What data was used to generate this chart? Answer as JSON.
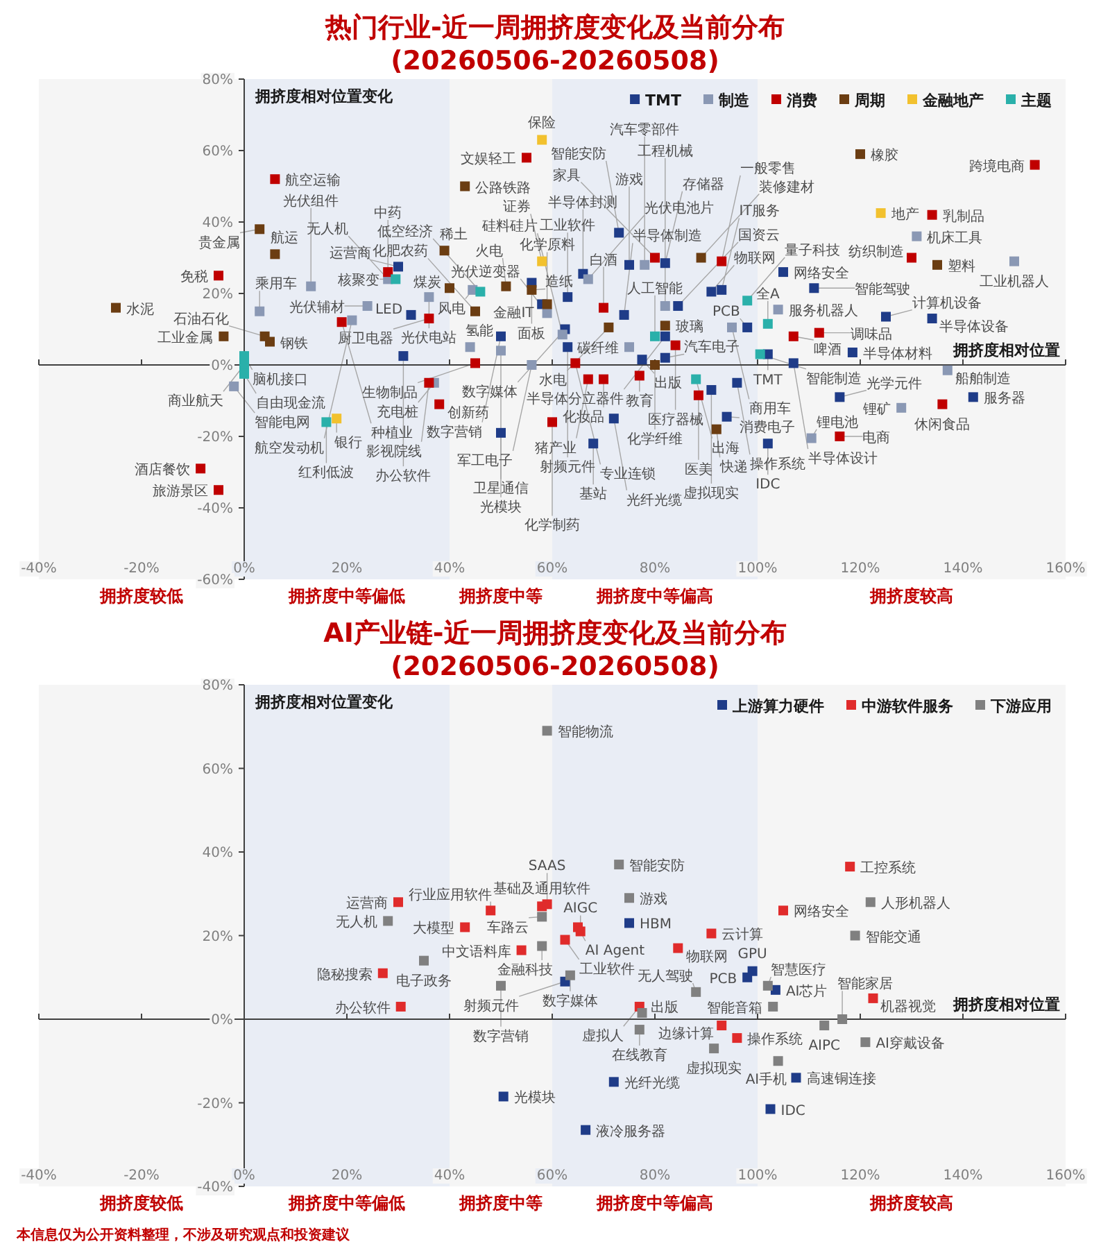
{
  "chart_data": [
    {
      "type": "scatter",
      "title": "热门行业-近一周拥挤度变化及当前分布",
      "subtitle": "(20260506-20260508)",
      "xlabel": "拥挤度相对位置",
      "ylabel": "拥挤度相对位置变化",
      "xlim": [
        -40,
        160
      ],
      "ylim": [
        -60,
        80
      ],
      "xticks": [
        {
          "value": -40,
          "label": "-40%"
        },
        {
          "value": -20,
          "label": "-20%"
        },
        {
          "value": 0,
          "label": "0%"
        },
        {
          "value": 20,
          "label": "20%"
        },
        {
          "value": 40,
          "label": "40%"
        },
        {
          "value": 60,
          "label": "60%"
        },
        {
          "value": 80,
          "label": "80%"
        },
        {
          "value": 100,
          "label": "100%"
        },
        {
          "value": 120,
          "label": "120%"
        },
        {
          "value": 140,
          "label": "140%"
        },
        {
          "value": 160,
          "label": "160%"
        }
      ],
      "yticks": [
        {
          "value": -60,
          "label": "-60%"
        },
        {
          "value": -40,
          "label": "-40%"
        },
        {
          "value": -20,
          "label": "-20%"
        },
        {
          "value": 0,
          "label": "0%"
        },
        {
          "value": 20,
          "label": "20%"
        },
        {
          "value": 40,
          "label": "40%"
        },
        {
          "value": 60,
          "label": "60%"
        },
        {
          "value": 80,
          "label": "80%"
        }
      ],
      "marker": "square",
      "legend": "top right",
      "bands": [
        {
          "axis": "x",
          "from": -40,
          "to": 0,
          "label": "拥挤度较低",
          "color": "#f5f5f5"
        },
        {
          "axis": "x",
          "from": 0,
          "to": 40,
          "label": "拥挤度中等偏低",
          "color": "#e9edf5"
        },
        {
          "axis": "x",
          "from": 40,
          "to": 60,
          "label": "拥挤度中等",
          "color": "#f5f5f5"
        },
        {
          "axis": "x",
          "from": 60,
          "to": 100,
          "label": "拥挤度中等偏高",
          "color": "#e9edf5"
        },
        {
          "axis": "x",
          "from": 100,
          "to": 160,
          "label": "拥挤度较高",
          "color": "#f5f5f5"
        }
      ],
      "series": [
        {
          "name": "TMT",
          "color": "#1f3c88",
          "x": [
            30,
            32.5,
            31,
            50,
            50,
            56,
            58,
            63,
            62.5,
            63,
            66,
            73,
            75,
            82,
            91,
            93,
            84.5,
            74,
            82,
            77.5,
            82,
            91,
            96,
            94,
            72,
            68,
            102,
            98,
            102,
            105,
            111,
            107,
            125,
            134,
            118.5,
            142,
            116
          ],
          "values": [
            27.5,
            14,
            2.5,
            8,
            -19,
            23,
            17,
            19,
            10,
            5,
            25.5,
            37,
            28,
            28.5,
            20.5,
            21,
            16.5,
            14,
            8,
            1.5,
            2,
            -7,
            -5,
            -14.5,
            -15,
            -22,
            -22,
            10.5,
            3,
            26,
            21.5,
            0.5,
            13.5,
            13,
            3.5,
            -9,
            -9
          ]
        },
        {
          "name": "制造",
          "color": "#8a98b4",
          "x": [
            3,
            13,
            -2,
            28,
            36,
            24,
            21,
            37,
            44.5,
            44,
            50,
            56,
            59,
            62,
            67,
            78,
            82,
            75,
            104,
            95,
            128,
            137,
            131,
            150,
            110.5
          ],
          "values": [
            15,
            22,
            -6,
            24,
            19,
            16.5,
            12.5,
            -5,
            21,
            5,
            4,
            0,
            14.5,
            8.5,
            24,
            28,
            16.5,
            5,
            15.5,
            10.5,
            -12,
            -1.5,
            36,
            29,
            -20.5
          ]
        },
        {
          "name": "消费",
          "color": "#c00000",
          "x": [
            6,
            -5,
            -8.5,
            -5,
            28,
            19,
            36,
            36,
            38,
            55,
            45,
            60,
            64.5,
            70,
            80,
            93,
            84,
            77,
            67,
            70,
            88.5,
            107,
            112,
            116,
            154,
            134,
            130,
            136
          ],
          "values": [
            52,
            25,
            -29,
            -35,
            26,
            12,
            13,
            -5,
            -11,
            58,
            0.5,
            -16,
            0.5,
            16,
            30,
            29,
            5.5,
            -3,
            -4,
            -4,
            -8.5,
            8,
            9,
            -20,
            56,
            42,
            30,
            -11
          ]
        },
        {
          "name": "周期",
          "color": "#6b3d12",
          "x": [
            3,
            6,
            -25,
            -4,
            4,
            5,
            43,
            39,
            40,
            45,
            51,
            56,
            59,
            71,
            82,
            80,
            89,
            92,
            120,
            135
          ],
          "values": [
            38,
            31,
            16,
            8,
            8,
            6.5,
            50,
            32,
            21.5,
            15,
            22,
            21,
            17,
            10.5,
            11,
            0,
            30,
            -18,
            59,
            28
          ]
        },
        {
          "name": "金融地产",
          "color": "#f2c12e",
          "x": [
            58,
            58,
            18,
            124
          ],
          "values": [
            63,
            29,
            -15,
            42.5
          ]
        },
        {
          "name": "主题",
          "color": "#2ab0aa",
          "x": [
            0,
            0,
            0,
            16,
            29.5,
            46,
            80,
            88,
            98,
            102,
            100.5
          ],
          "values": [
            2.5,
            0,
            -2.5,
            -16,
            24,
            20.5,
            8,
            -4,
            18,
            11.5,
            3
          ]
        }
      ],
      "annotations": [
        {
          "text": "运营商",
          "x": 30,
          "y": 27.5
        },
        {
          "text": "LED",
          "x": 32.5,
          "y": 14
        },
        {
          "text": "办公软件",
          "x": 31,
          "y": 2.5
        },
        {
          "text": "数字营销",
          "x": 50,
          "y": 8
        },
        {
          "text": "光模块",
          "x": 50,
          "y": -19
        },
        {
          "text": "面板",
          "x": 56,
          "y": 23
        },
        {
          "text": "金融IT",
          "x": 58,
          "y": 17
        },
        {
          "text": "工业软件",
          "x": 63,
          "y": 19
        },
        {
          "text": "数字媒体",
          "x": 62.5,
          "y": 10
        },
        {
          "text": "射频元件",
          "x": 63,
          "y": 5
        },
        {
          "text": "半导体封测",
          "x": 66,
          "y": 25.5
        },
        {
          "text": "智能安防",
          "x": 73,
          "y": 37
        },
        {
          "text": "游戏",
          "x": 75,
          "y": 28
        },
        {
          "text": "存储器",
          "x": 82,
          "y": 28.5
        },
        {
          "text": "物联网",
          "x": 91,
          "y": 20.5
        },
        {
          "text": "IT服务",
          "x": 93,
          "y": 21
        },
        {
          "text": "国资云",
          "x": 84.5,
          "y": 16.5
        },
        {
          "text": "半导体制造",
          "x": 74,
          "y": 14
        },
        {
          "text": "半导体分立器件",
          "x": 82,
          "y": 8
        },
        {
          "text": "出版",
          "x": 77.5,
          "y": 1.5
        },
        {
          "text": "汽车电子",
          "x": 82,
          "y": 2
        },
        {
          "text": "虚拟现实",
          "x": 91,
          "y": -7
        },
        {
          "text": "操作系统",
          "x": 96,
          "y": -5
        },
        {
          "text": "消费电子",
          "x": 94,
          "y": -14.5
        },
        {
          "text": "光纤光缆",
          "x": 72,
          "y": -15
        },
        {
          "text": "基站",
          "x": 68,
          "y": -22
        },
        {
          "text": "IDC",
          "x": 102,
          "y": -22
        },
        {
          "text": "PCB",
          "x": 98,
          "y": 10.5
        },
        {
          "text": "TMT",
          "x": 102,
          "y": 3
        },
        {
          "text": "网络安全",
          "x": 105,
          "y": 26
        },
        {
          "text": "智能驾驶",
          "x": 111,
          "y": 21.5
        },
        {
          "text": "半导体设计",
          "x": 107,
          "y": 0.5
        },
        {
          "text": "计算机设备",
          "x": 125,
          "y": 13.5
        },
        {
          "text": "半导体设备",
          "x": 134,
          "y": 13
        },
        {
          "text": "半导体材料",
          "x": 118.5,
          "y": 3.5
        },
        {
          "text": "服务器",
          "x": 142,
          "y": -9
        },
        {
          "text": "光学元件",
          "x": 116,
          "y": -9
        },
        {
          "text": "乘用车",
          "x": 3,
          "y": 15
        },
        {
          "text": "光伏组件",
          "x": 13,
          "y": 22
        },
        {
          "text": "智能电网",
          "x": -2,
          "y": -6
        },
        {
          "text": "无人机",
          "x": 28,
          "y": 24
        },
        {
          "text": "光伏电站",
          "x": 36,
          "y": 19
        },
        {
          "text": "光伏辅材",
          "x": 24,
          "y": 16.5
        },
        {
          "text": "航空发动机",
          "x": 21,
          "y": 12.5
        },
        {
          "text": "充电桩",
          "x": 37,
          "y": -5
        },
        {
          "text": "风电",
          "x": 44.5,
          "y": 21
        },
        {
          "text": "氢能",
          "x": 44,
          "y": 5
        },
        {
          "text": "卫星通信",
          "x": 50,
          "y": 4
        },
        {
          "text": "军工电子",
          "x": 56,
          "y": 0
        },
        {
          "text": "光伏逆变器",
          "x": 59,
          "y": 14.5
        },
        {
          "text": "硅料硅片",
          "x": 62,
          "y": 8.5
        },
        {
          "text": "光伏电池片",
          "x": 67,
          "y": 24
        },
        {
          "text": "汽车零部件",
          "x": 78,
          "y": 28
        },
        {
          "text": "工程机械",
          "x": 82,
          "y": 16.5
        },
        {
          "text": "碳纤维",
          "x": 75,
          "y": 5
        },
        {
          "text": "服务机器人",
          "x": 104,
          "y": 15.5
        },
        {
          "text": "商用车",
          "x": 95,
          "y": 10.5
        },
        {
          "text": "锂矿",
          "x": 128,
          "y": -12
        },
        {
          "text": "船舶制造",
          "x": 137,
          "y": -1.5
        },
        {
          "text": "机床工具",
          "x": 131,
          "y": 36
        },
        {
          "text": "工业机器人",
          "x": 150,
          "y": 29
        },
        {
          "text": "锂电池",
          "x": 110.5,
          "y": -20.5
        },
        {
          "text": "航空运输",
          "x": 6,
          "y": 52
        },
        {
          "text": "免税",
          "x": -5,
          "y": 25
        },
        {
          "text": "酒店餐饮",
          "x": -8.5,
          "y": -29
        },
        {
          "text": "旅游景区",
          "x": -5,
          "y": -35
        },
        {
          "text": "中药",
          "x": 28,
          "y": 26
        },
        {
          "text": "种植业",
          "x": 19,
          "y": 12
        },
        {
          "text": "厨卫电器",
          "x": 36,
          "y": 13
        },
        {
          "text": "影视院线",
          "x": 36,
          "y": -5
        },
        {
          "text": "创新药",
          "x": 38,
          "y": -11
        },
        {
          "text": "文娱轻工",
          "x": 55,
          "y": 58
        },
        {
          "text": "生物制品",
          "x": 45,
          "y": 0.5
        },
        {
          "text": "化学制药",
          "x": 60,
          "y": -16
        },
        {
          "text": "专业连锁",
          "x": 64.5,
          "y": 0.5
        },
        {
          "text": "白酒",
          "x": 70,
          "y": 16
        },
        {
          "text": "家具",
          "x": 80,
          "y": 30
        },
        {
          "text": "一般零售",
          "x": 93,
          "y": 29
        },
        {
          "text": "医疗器械",
          "x": 84,
          "y": 5.5
        },
        {
          "text": "教育",
          "x": 77,
          "y": -3
        },
        {
          "text": "猪产业",
          "x": 67,
          "y": -4
        },
        {
          "text": "化妆品",
          "x": 70,
          "y": -4
        },
        {
          "text": "医美",
          "x": 88.5,
          "y": -8.5
        },
        {
          "text": "啤酒",
          "x": 107,
          "y": 8
        },
        {
          "text": "调味品",
          "x": 112,
          "y": 9
        },
        {
          "text": "电商",
          "x": 116,
          "y": -20
        },
        {
          "text": "跨境电商",
          "x": 154,
          "y": 56
        },
        {
          "text": "乳制品",
          "x": 134,
          "y": 42
        },
        {
          "text": "纺织制造",
          "x": 130,
          "y": 30
        },
        {
          "text": "休闲食品",
          "x": 136,
          "y": -11
        },
        {
          "text": "贵金属",
          "x": 3,
          "y": 38
        },
        {
          "text": "航运",
          "x": 6,
          "y": 31
        },
        {
          "text": "水泥",
          "x": -25,
          "y": 16
        },
        {
          "text": "工业金属",
          "x": -4,
          "y": 8
        },
        {
          "text": "石油石化",
          "x": 4,
          "y": 8
        },
        {
          "text": "钢铁",
          "x": 5,
          "y": 6.5
        },
        {
          "text": "公路铁路",
          "x": 43,
          "y": 50
        },
        {
          "text": "稀土",
          "x": 39,
          "y": 32
        },
        {
          "text": "煤炭",
          "x": 40,
          "y": 21.5
        },
        {
          "text": "化肥农药",
          "x": 45,
          "y": 15
        },
        {
          "text": "火电",
          "x": 51,
          "y": 22
        },
        {
          "text": "造纸",
          "x": 56,
          "y": 21
        },
        {
          "text": "化学原料",
          "x": 59,
          "y": 17
        },
        {
          "text": "水电",
          "x": 71,
          "y": 10.5
        },
        {
          "text": "玻璃",
          "x": 82,
          "y": 11
        },
        {
          "text": "化学纤维",
          "x": 80,
          "y": 0
        },
        {
          "text": "装修建材",
          "x": 89,
          "y": 30
        },
        {
          "text": "快递",
          "x": 92,
          "y": -18
        },
        {
          "text": "橡胶",
          "x": 120,
          "y": 59
        },
        {
          "text": "塑料",
          "x": 135,
          "y": 28
        },
        {
          "text": "保险",
          "x": 58,
          "y": 63
        },
        {
          "text": "证券",
          "x": 58,
          "y": 29
        },
        {
          "text": "银行",
          "x": 18,
          "y": -15
        },
        {
          "text": "地产",
          "x": 124,
          "y": 42.5
        },
        {
          "text": "脑机接口",
          "x": 0,
          "y": 2.5
        },
        {
          "text": "商业航天",
          "x": 0,
          "y": 0
        },
        {
          "text": "自由现金流",
          "x": 0,
          "y": -2.5
        },
        {
          "text": "红利低波",
          "x": 16,
          "y": -16
        },
        {
          "text": "核聚变",
          "x": 29.5,
          "y": 24
        },
        {
          "text": "低空经济",
          "x": 46,
          "y": 20.5
        },
        {
          "text": "人工智能",
          "x": 80,
          "y": 8
        },
        {
          "text": "出海",
          "x": 88,
          "y": -4
        },
        {
          "text": "量子科技",
          "x": 98,
          "y": 18
        },
        {
          "text": "全A",
          "x": 102,
          "y": 11.5
        },
        {
          "text": "智能制造",
          "x": 100.5,
          "y": 3
        }
      ]
    },
    {
      "type": "scatter",
      "title": "AI产业链-近一周拥挤度变化及当前分布",
      "subtitle": "(20260506-20260508)",
      "xlabel": "拥挤度相对位置",
      "ylabel": "拥挤度相对位置变化",
      "xlim": [
        -40,
        160
      ],
      "ylim": [
        -40,
        80
      ],
      "xticks": [
        {
          "value": -40,
          "label": "-40%"
        },
        {
          "value": -20,
          "label": "-20%"
        },
        {
          "value": 0,
          "label": "0%"
        },
        {
          "value": 20,
          "label": "20%"
        },
        {
          "value": 40,
          "label": "40%"
        },
        {
          "value": 60,
          "label": "60%"
        },
        {
          "value": 80,
          "label": "80%"
        },
        {
          "value": 100,
          "label": "100%"
        },
        {
          "value": 120,
          "label": "120%"
        },
        {
          "value": 140,
          "label": "140%"
        },
        {
          "value": 160,
          "label": "160%"
        }
      ],
      "yticks": [
        {
          "value": -40,
          "label": "-40%"
        },
        {
          "value": -20,
          "label": "-20%"
        },
        {
          "value": 0,
          "label": "0%"
        },
        {
          "value": 20,
          "label": "20%"
        },
        {
          "value": 40,
          "label": "40%"
        },
        {
          "value": 60,
          "label": "60%"
        },
        {
          "value": 80,
          "label": "80%"
        }
      ],
      "marker": "square",
      "legend": "top right",
      "bands": [
        {
          "axis": "x",
          "from": -40,
          "to": 0,
          "label": "拥挤度较低",
          "color": "#f5f5f5"
        },
        {
          "axis": "x",
          "from": 0,
          "to": 40,
          "label": "拥挤度中等偏低",
          "color": "#e9edf5"
        },
        {
          "axis": "x",
          "from": 40,
          "to": 60,
          "label": "拥挤度中等",
          "color": "#f5f5f5"
        },
        {
          "axis": "x",
          "from": 60,
          "to": 100,
          "label": "拥挤度中等偏高",
          "color": "#e9edf5"
        },
        {
          "axis": "x",
          "from": 100,
          "to": 160,
          "label": "拥挤度较高",
          "color": "#f5f5f5"
        }
      ],
      "series": [
        {
          "name": "上游算力硬件",
          "color": "#1f3c88",
          "x": [
            75,
            62.5,
            99,
            98,
            103.5,
            107.5,
            102.5,
            72,
            66.5,
            50.5
          ],
          "values": [
            23,
            9,
            11.5,
            10,
            7,
            -14,
            -21.5,
            -15,
            -26.5,
            -18.5
          ]
        },
        {
          "name": "中游软件服务",
          "color": "#e02b2b",
          "x": [
            30,
            27,
            30.5,
            48,
            43,
            58,
            59,
            54,
            65,
            65.5,
            62.5,
            84.5,
            91,
            77,
            93,
            96,
            118,
            105,
            122.5
          ],
          "values": [
            28,
            11,
            3,
            26,
            22,
            27,
            27.5,
            16.5,
            22,
            21,
            19,
            17,
            20.5,
            3,
            -1.5,
            -4.5,
            36.5,
            26,
            5
          ]
        },
        {
          "name": "下游应用",
          "color": "#808080",
          "x": [
            59,
            28,
            35,
            58,
            58,
            50,
            63.5,
            73,
            75,
            88,
            102,
            103,
            77.5,
            77,
            91.5,
            104,
            122,
            119,
            116.5,
            113,
            121
          ],
          "values": [
            69,
            23.5,
            14,
            24.5,
            17.5,
            8,
            10.5,
            37,
            29,
            6.5,
            8,
            3,
            1.5,
            -2.5,
            -7,
            -10,
            28,
            20,
            0,
            -1.5,
            -5.5
          ]
        }
      ],
      "annotations": [
        {
          "text": "HBM",
          "x": 75,
          "y": 23
        },
        {
          "text": "射频元件",
          "x": 62.5,
          "y": 9
        },
        {
          "text": "GPU",
          "x": 99,
          "y": 11.5
        },
        {
          "text": "PCB",
          "x": 98,
          "y": 10
        },
        {
          "text": "AI芯片",
          "x": 103.5,
          "y": 7
        },
        {
          "text": "高速铜连接",
          "x": 107.5,
          "y": -14
        },
        {
          "text": "IDC",
          "x": 102.5,
          "y": -21.5
        },
        {
          "text": "光纤光缆",
          "x": 72,
          "y": -15
        },
        {
          "text": "液冷服务器",
          "x": 66.5,
          "y": -26.5
        },
        {
          "text": "光模块",
          "x": 50.5,
          "y": -18.5
        },
        {
          "text": "运营商",
          "x": 30,
          "y": 28
        },
        {
          "text": "隐秘搜索",
          "x": 27,
          "y": 11
        },
        {
          "text": "办公软件",
          "x": 30.5,
          "y": 3
        },
        {
          "text": "行业应用软件",
          "x": 48,
          "y": 26
        },
        {
          "text": "大模型",
          "x": 43,
          "y": 22
        },
        {
          "text": "基础及通用软件",
          "x": 58,
          "y": 27
        },
        {
          "text": "SAAS",
          "x": 59,
          "y": 27.5
        },
        {
          "text": "中文语料库",
          "x": 54,
          "y": 16.5
        },
        {
          "text": "AI Agent",
          "x": 65,
          "y": 22
        },
        {
          "text": "AIGC",
          "x": 65.5,
          "y": 21
        },
        {
          "text": "工业软件",
          "x": 62.5,
          "y": 19
        },
        {
          "text": "物联网",
          "x": 84.5,
          "y": 17
        },
        {
          "text": "云计算",
          "x": 91,
          "y": 20.5
        },
        {
          "text": "虚拟人",
          "x": 77,
          "y": 3
        },
        {
          "text": "边缘计算",
          "x": 93,
          "y": -1.5
        },
        {
          "text": "操作系统",
          "x": 96,
          "y": -4.5
        },
        {
          "text": "工控系统",
          "x": 118,
          "y": 36.5
        },
        {
          "text": "网络安全",
          "x": 105,
          "y": 26
        },
        {
          "text": "机器视觉",
          "x": 122.5,
          "y": 5
        },
        {
          "text": "智能物流",
          "x": 59,
          "y": 69
        },
        {
          "text": "无人机",
          "x": 28,
          "y": 23.5
        },
        {
          "text": "电子政务",
          "x": 35,
          "y": 14
        },
        {
          "text": "车路云",
          "x": 58,
          "y": 24.5
        },
        {
          "text": "金融科技",
          "x": 58,
          "y": 17.5
        },
        {
          "text": "数字营销",
          "x": 50,
          "y": 8
        },
        {
          "text": "数字媒体",
          "x": 63.5,
          "y": 10.5
        },
        {
          "text": "智能安防",
          "x": 73,
          "y": 37
        },
        {
          "text": "游戏",
          "x": 75,
          "y": 29
        },
        {
          "text": "无人驾驶",
          "x": 88,
          "y": 6.5
        },
        {
          "text": "智慧医疗",
          "x": 102,
          "y": 8
        },
        {
          "text": "智能音箱",
          "x": 103,
          "y": 3
        },
        {
          "text": "出版",
          "x": 77.5,
          "y": 1.5
        },
        {
          "text": "在线教育",
          "x": 77,
          "y": -2.5
        },
        {
          "text": "虚拟现实",
          "x": 91.5,
          "y": -7
        },
        {
          "text": "AI手机",
          "x": 104,
          "y": -10
        },
        {
          "text": "人形机器人",
          "x": 122,
          "y": 28
        },
        {
          "text": "智能交通",
          "x": 119,
          "y": 20
        },
        {
          "text": "智能家居",
          "x": 116.5,
          "y": 0
        },
        {
          "text": "AIPC",
          "x": 113,
          "y": -1.5
        },
        {
          "text": "AI穿戴设备",
          "x": 121,
          "y": -5.5
        },
        "本信息仅为公开资料整理，不涉及研究观点和投资建议"
      ]
    }
  ]
}
